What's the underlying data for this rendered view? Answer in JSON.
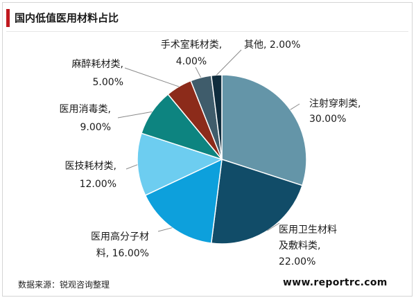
{
  "title": "国内低值医用材料占比",
  "source": "数据来源：锐观咨询整理",
  "website": "www.reportrc.com",
  "chart_data": {
    "type": "pie",
    "categories": [
      "注射穿刺类",
      "医用卫生材料及敷料类",
      "医用高分子材料",
      "医技耗材类",
      "医用消毒类",
      "麻醉耗材类",
      "手术室耗材类",
      "其他"
    ],
    "values": [
      30.0,
      22.0,
      16.0,
      12.0,
      9.0,
      5.0,
      4.0,
      2.0
    ],
    "label_lines": [
      [
        "注射穿刺类,",
        "30.00%"
      ],
      [
        "医用卫生材料",
        "及敷料类,",
        "22.00%"
      ],
      [
        "医用高分子材",
        "料, 16.00%"
      ],
      [
        "医技耗材类,",
        "12.00%"
      ],
      [
        "医用消毒类,",
        "9.00%"
      ],
      [
        "麻醉耗材类,",
        "5.00%"
      ],
      [
        "手术室耗材类,",
        "4.00%"
      ],
      [
        "其他, 2.00%"
      ]
    ],
    "colors": [
      "#6495a8",
      "#114c68",
      "#0da0dc",
      "#6dcdf0",
      "#0d8480",
      "#8c2b1a",
      "#3f5c6b",
      "#0f2d3e"
    ],
    "start": "12 o'clock",
    "direction": "clockwise"
  }
}
